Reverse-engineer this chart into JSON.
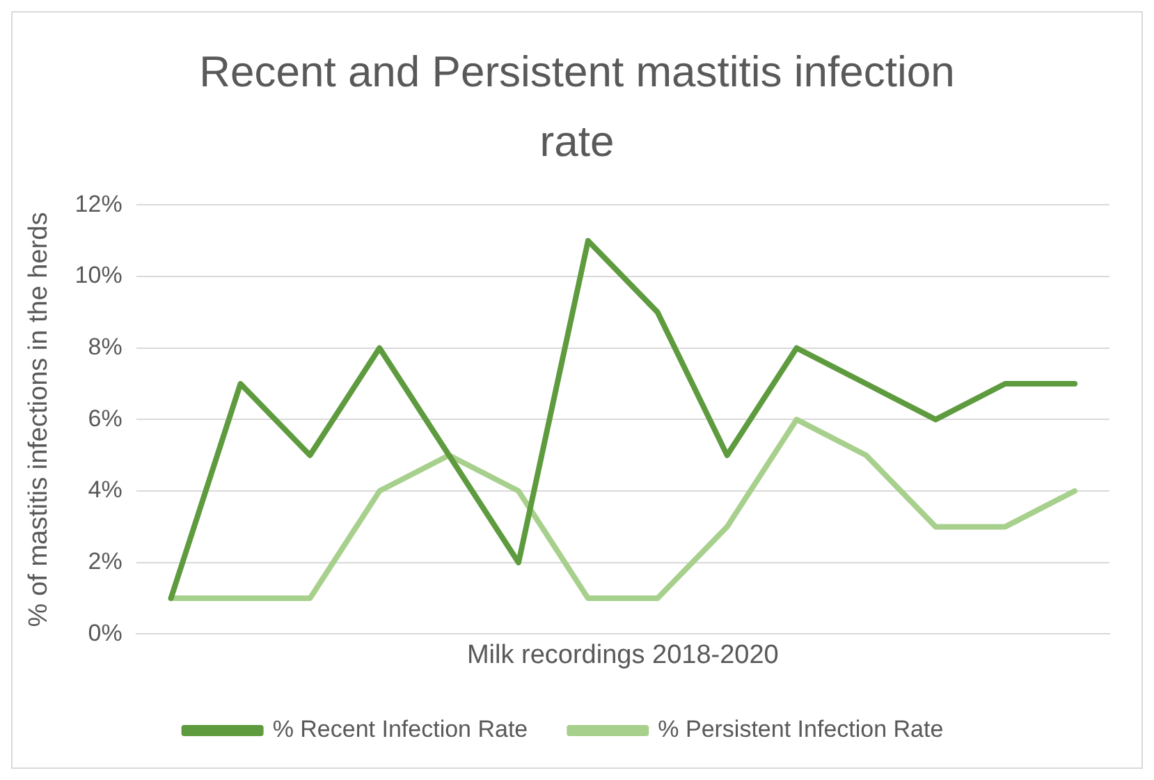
{
  "chart_data": {
    "type": "line",
    "title": "Recent and Persistent mastitis infection rate",
    "xlabel": "Milk recordings 2018-2020",
    "ylabel": "% of mastitis infections in the herds",
    "categories": [
      null,
      null,
      null,
      null,
      null,
      null,
      null,
      null,
      null,
      null,
      null,
      null,
      null,
      null
    ],
    "series": [
      {
        "name": "% Recent Infection Rate",
        "color": "#5e9b3e",
        "values": [
          1,
          7,
          5,
          8,
          5,
          2,
          11,
          9,
          5,
          8,
          7,
          6,
          7,
          7
        ]
      },
      {
        "name": "% Persistent Infection Rate",
        "color": "#a8d08d",
        "values": [
          1,
          1,
          1,
          4,
          5,
          4,
          1,
          1,
          3,
          6,
          5,
          3,
          3,
          4
        ]
      }
    ],
    "ylim": [
      0,
      12
    ],
    "yticks": [
      {
        "value": 0,
        "label": "0%"
      },
      {
        "value": 2,
        "label": "2%"
      },
      {
        "value": 4,
        "label": "4%"
      },
      {
        "value": 6,
        "label": "6%"
      },
      {
        "value": 8,
        "label": "8%"
      },
      {
        "value": 10,
        "label": "10%"
      },
      {
        "value": 12,
        "label": "12%"
      }
    ],
    "grid": "y",
    "legend": "bottom",
    "tick_labels": "y",
    "marker": "none",
    "line_style": "solid"
  }
}
